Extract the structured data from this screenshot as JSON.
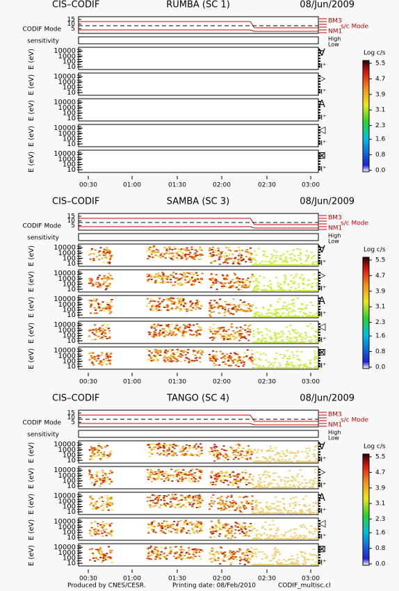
{
  "panels": [
    {
      "instrument": "CIS–CODIF",
      "spacecraft": "RUMBA (SC 1)",
      "date": "08/Jun/2009",
      "has_data": false
    },
    {
      "instrument": "CIS–CODIF",
      "spacecraft": "SAMBA (SC 3)",
      "date": "08/Jun/2009",
      "has_data": true
    },
    {
      "instrument": "CIS–CODIF",
      "spacecraft": "TANGO (SC 4)",
      "date": "08/Jun/2009",
      "has_data": true
    }
  ],
  "mode_axis": {
    "label": "CODIF Mode",
    "yticks": [
      15,
      10,
      5
    ],
    "levels": [
      "BM3",
      "NM1"
    ],
    "annotation": "s/c Mode"
  },
  "sensitivity": {
    "label": "sensitivity",
    "levels": [
      "High",
      "Low"
    ]
  },
  "energy_axis": {
    "label": "E (eV)",
    "yticks": [
      10000,
      1000,
      100,
      10
    ]
  },
  "directions": [
    "∀",
    "▷",
    "A",
    "◁",
    "⊠"
  ],
  "species": "H⁺",
  "xticks": [
    "00:30",
    "01:00",
    "01:30",
    "02:00",
    "02:30",
    "03:00"
  ],
  "colorbar": {
    "label": "Log c/s",
    "ticks": [
      5.5,
      4.7,
      3.9,
      3.1,
      2.3,
      1.6,
      0.8,
      {
        "value": 0,
        "label": "0.0"
      }
    ]
  },
  "footer": {
    "producer": "Produced by CNES/CESR.",
    "printing": "Printing date: 08/Feb/2010",
    "file": "CODIF_multisc.cl"
  }
}
